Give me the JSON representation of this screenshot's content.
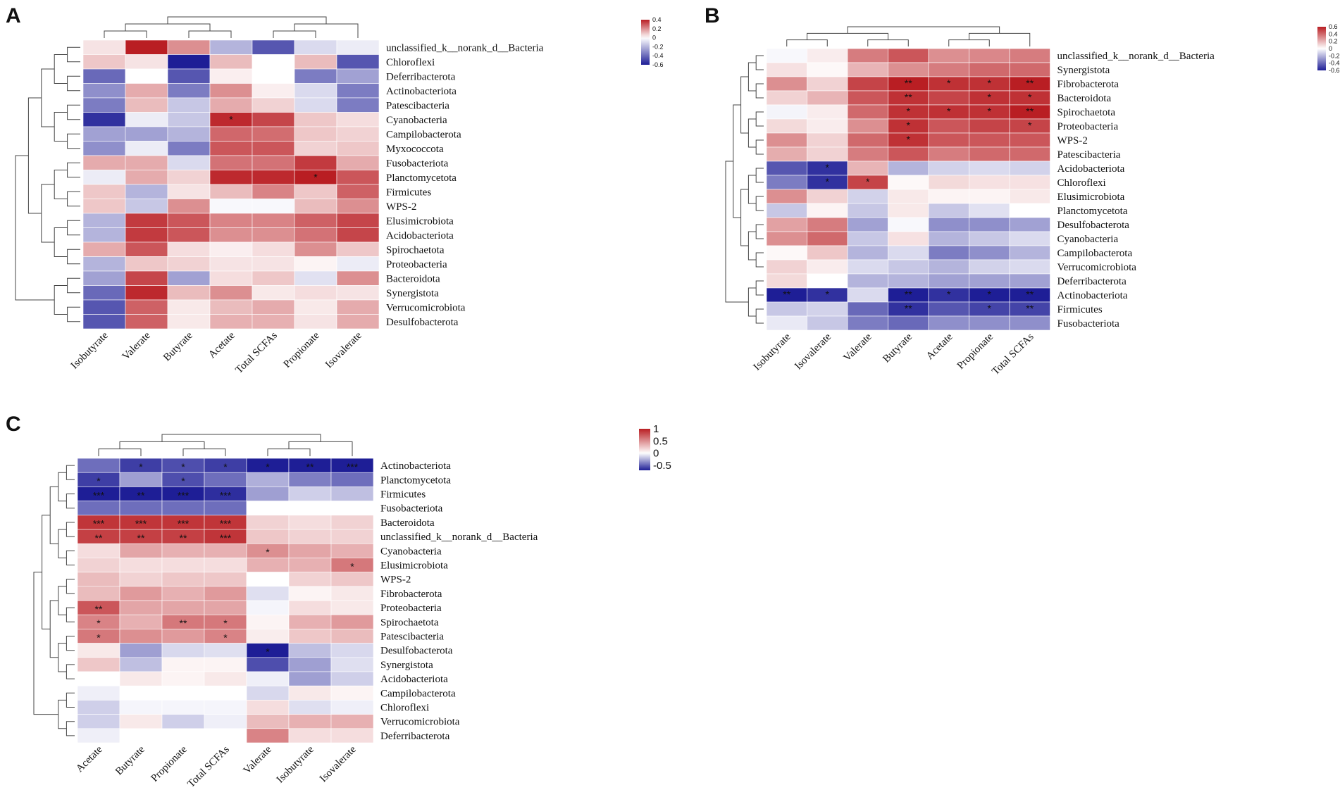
{
  "chart_data": [
    {
      "panel": "A",
      "type": "heatmap",
      "color_scale": {
        "min": -0.6,
        "max": 0.4,
        "low": "#1e1e96",
        "mid": "#ffffff",
        "high": "#b91e23"
      },
      "legend_ticks": [
        "0.4",
        "0.2",
        "0",
        "-0.2",
        "-0.4",
        "-0.6"
      ],
      "columns": [
        "Isobutyrate",
        "Valerate",
        "Butyrate",
        "Acetate",
        "Total SCFAs",
        "Propionate",
        "Isovalerate"
      ],
      "rows": [
        "unclassified_k__norank_d__Bacteria",
        "Chloroflexi",
        "Deferribacterota",
        "Actinobacteriota",
        "Patescibacteria",
        "Cyanobacteria",
        "Campilobacterota",
        "Myxococcota",
        "Fusobacteriota",
        "Planctomycetota",
        "Firmicutes",
        "WPS-2",
        "Elusimicrobiota",
        "Acidobacteriota",
        "Spirochaetota",
        "Proteobacteria",
        "Bacteroidota",
        "Synergistota",
        "Verrucomicrobiota",
        "Desulfobacterota"
      ],
      "values": [
        [
          0.05,
          0.4,
          0.2,
          -0.2,
          -0.45,
          -0.1,
          -0.05
        ],
        [
          0.1,
          0.05,
          -0.6,
          0.12,
          0.0,
          0.12,
          -0.45
        ],
        [
          -0.4,
          0.0,
          -0.45,
          0.03,
          0.0,
          -0.35,
          -0.25
        ],
        [
          -0.3,
          0.15,
          -0.35,
          0.2,
          0.03,
          -0.1,
          -0.35
        ],
        [
          -0.35,
          0.12,
          -0.15,
          0.15,
          0.08,
          -0.1,
          -0.35
        ],
        [
          -0.55,
          -0.05,
          -0.15,
          0.38,
          0.33,
          0.1,
          0.06
        ],
        [
          -0.25,
          -0.25,
          -0.2,
          0.27,
          0.26,
          0.1,
          0.08
        ],
        [
          -0.3,
          -0.05,
          -0.35,
          0.3,
          0.3,
          0.08,
          0.1
        ],
        [
          0.15,
          0.15,
          -0.1,
          0.25,
          0.25,
          0.35,
          0.15
        ],
        [
          -0.05,
          0.15,
          0.08,
          0.38,
          0.38,
          0.4,
          0.3
        ],
        [
          0.1,
          -0.2,
          0.05,
          0.12,
          0.22,
          0.1,
          0.28
        ],
        [
          0.1,
          -0.15,
          0.2,
          -0.02,
          -0.02,
          0.12,
          0.2
        ],
        [
          -0.2,
          0.35,
          0.3,
          0.22,
          0.22,
          0.28,
          0.33
        ],
        [
          -0.2,
          0.35,
          0.3,
          0.2,
          0.2,
          0.25,
          0.33
        ],
        [
          0.15,
          0.3,
          0.06,
          0.03,
          0.06,
          0.2,
          0.1
        ],
        [
          -0.2,
          0.1,
          0.08,
          0.05,
          0.05,
          0.02,
          -0.05
        ],
        [
          -0.25,
          0.33,
          -0.25,
          0.06,
          0.1,
          -0.08,
          0.2
        ],
        [
          -0.4,
          0.38,
          0.12,
          0.2,
          0.04,
          0.06,
          0.05
        ],
        [
          -0.45,
          0.28,
          0.04,
          0.12,
          0.15,
          0.04,
          0.15
        ],
        [
          -0.45,
          0.28,
          0.04,
          0.14,
          0.14,
          0.05,
          0.15
        ]
      ],
      "annotations": [
        {
          "row": 5,
          "col": 3,
          "text": "*"
        },
        {
          "row": 9,
          "col": 5,
          "text": "*"
        }
      ]
    },
    {
      "panel": "B",
      "type": "heatmap",
      "color_scale": {
        "min": -0.6,
        "max": 0.6,
        "low": "#1e1e96",
        "mid": "#ffffff",
        "high": "#b91e23"
      },
      "legend_ticks": [
        "0.6",
        "0.4",
        "0.2",
        "0",
        "-0.2",
        "-0.4",
        "-0.6"
      ],
      "columns": [
        "Isobutyrate",
        "Isovalerate",
        "Valerate",
        "Butyrate",
        "Acetate",
        "Propionate",
        "Total SCFAs"
      ],
      "rows": [
        "unclassified_k__norank_d__Bacteria",
        "Synergistota",
        "Fibrobacterota",
        "Bacteroidota",
        "Spirochaetota",
        "Proteobacteria",
        "WPS-2",
        "Patescibacteria",
        "Acidobacteriota",
        "Chloroflexi",
        "Elusimicrobiota",
        "Planctomycetota",
        "Desulfobacterota",
        "Cyanobacteria",
        "Campilobacterota",
        "Verrucomicrobiota",
        "Deferribacterota",
        "Actinobacteriota",
        "Firmicutes",
        "Fusobacteriota"
      ],
      "values": [
        [
          -0.02,
          0.05,
          0.35,
          0.45,
          0.3,
          0.32,
          0.35
        ],
        [
          0.08,
          0.02,
          0.2,
          0.3,
          0.35,
          0.4,
          0.4
        ],
        [
          0.3,
          0.12,
          0.5,
          0.6,
          0.55,
          0.55,
          0.6
        ],
        [
          0.12,
          0.2,
          0.45,
          0.55,
          0.5,
          0.55,
          0.55
        ],
        [
          -0.03,
          0.05,
          0.4,
          0.55,
          0.55,
          0.55,
          0.6
        ],
        [
          0.1,
          0.05,
          0.3,
          0.55,
          0.45,
          0.5,
          0.5
        ],
        [
          0.3,
          0.12,
          0.4,
          0.55,
          0.45,
          0.45,
          0.45
        ],
        [
          0.22,
          0.12,
          0.35,
          0.45,
          0.35,
          0.4,
          0.4
        ],
        [
          -0.45,
          -0.55,
          0.2,
          -0.2,
          -0.12,
          -0.1,
          -0.12
        ],
        [
          -0.35,
          -0.55,
          0.5,
          0.02,
          0.1,
          0.08,
          0.08
        ],
        [
          0.3,
          0.12,
          -0.12,
          0.06,
          0.03,
          0.03,
          0.06
        ],
        [
          -0.15,
          0.03,
          -0.15,
          0.06,
          -0.15,
          -0.08,
          0.0
        ],
        [
          0.25,
          0.35,
          -0.25,
          -0.02,
          -0.3,
          -0.3,
          -0.25
        ],
        [
          0.3,
          0.4,
          -0.15,
          0.08,
          -0.2,
          -0.15,
          -0.1
        ],
        [
          0.02,
          0.15,
          -0.2,
          -0.1,
          -0.35,
          -0.3,
          -0.2
        ],
        [
          0.12,
          0.05,
          -0.1,
          -0.15,
          -0.2,
          -0.12,
          -0.1
        ],
        [
          0.1,
          0.0,
          -0.2,
          -0.2,
          -0.25,
          -0.25,
          -0.25
        ],
        [
          -0.6,
          -0.55,
          -0.1,
          -0.6,
          -0.55,
          -0.6,
          -0.6
        ],
        [
          -0.15,
          -0.12,
          -0.4,
          -0.55,
          -0.45,
          -0.5,
          -0.5
        ],
        [
          -0.06,
          -0.15,
          -0.35,
          -0.4,
          -0.3,
          -0.3,
          -0.3
        ]
      ],
      "annotations": [
        {
          "row": 2,
          "col": 3,
          "text": "**"
        },
        {
          "row": 2,
          "col": 4,
          "text": "*"
        },
        {
          "row": 2,
          "col": 5,
          "text": "*"
        },
        {
          "row": 2,
          "col": 6,
          "text": "**"
        },
        {
          "row": 3,
          "col": 3,
          "text": "**"
        },
        {
          "row": 3,
          "col": 5,
          "text": "*"
        },
        {
          "row": 3,
          "col": 6,
          "text": "*"
        },
        {
          "row": 4,
          "col": 3,
          "text": "*"
        },
        {
          "row": 4,
          "col": 4,
          "text": "*"
        },
        {
          "row": 4,
          "col": 5,
          "text": "*"
        },
        {
          "row": 4,
          "col": 6,
          "text": "**"
        },
        {
          "row": 5,
          "col": 3,
          "text": "*"
        },
        {
          "row": 5,
          "col": 6,
          "text": "*"
        },
        {
          "row": 6,
          "col": 3,
          "text": "*"
        },
        {
          "row": 8,
          "col": 1,
          "text": "*"
        },
        {
          "row": 9,
          "col": 1,
          "text": "*"
        },
        {
          "row": 9,
          "col": 2,
          "text": "*"
        },
        {
          "row": 17,
          "col": 0,
          "text": "**"
        },
        {
          "row": 17,
          "col": 1,
          "text": "*"
        },
        {
          "row": 17,
          "col": 3,
          "text": "**"
        },
        {
          "row": 17,
          "col": 4,
          "text": "*"
        },
        {
          "row": 17,
          "col": 5,
          "text": "*"
        },
        {
          "row": 17,
          "col": 6,
          "text": "**"
        },
        {
          "row": 18,
          "col": 3,
          "text": "**"
        },
        {
          "row": 18,
          "col": 5,
          "text": "*"
        },
        {
          "row": 18,
          "col": 6,
          "text": "**"
        }
      ]
    },
    {
      "panel": "C",
      "type": "heatmap",
      "color_scale": {
        "min": -0.7,
        "max": 1,
        "low": "#1e1e96",
        "mid": "#ffffff",
        "high": "#b91e23"
      },
      "legend_ticks": [
        "1",
        "0.5",
        "0",
        "-0.5"
      ],
      "columns": [
        "Acetate",
        "Butyrate",
        "Propionate",
        "Total SCFAs",
        "Valerate",
        "Isobutyrate",
        "Isovalerate"
      ],
      "rows": [
        "Actinobacteriota",
        "Planctomycetota",
        "Firmicutes",
        "Fusobacteriota",
        "Bacteroidota",
        "unclassified_k__norank_d__Bacteria",
        "Cyanobacteria",
        "Elusimicrobiota",
        "WPS-2",
        "Fibrobacterota",
        "Proteobacteria",
        "Spirochaetota",
        "Patescibacteria",
        "Desulfobacterota",
        "Synergistota",
        "Acidobacteriota",
        "Campilobacterota",
        "Chloroflexi",
        "Verrucomicrobiota",
        "Deferribacterota"
      ],
      "values": [
        [
          -0.45,
          -0.6,
          -0.55,
          -0.6,
          -0.7,
          -0.7,
          -0.7
        ],
        [
          -0.6,
          -0.3,
          -0.55,
          -0.45,
          -0.25,
          -0.4,
          -0.45
        ],
        [
          -0.7,
          -0.7,
          -0.7,
          -0.65,
          -0.3,
          -0.15,
          -0.2
        ],
        [
          -0.45,
          -0.45,
          -0.45,
          -0.45,
          0.0,
          0.0,
          0.0
        ],
        [
          0.9,
          0.9,
          0.9,
          0.9,
          0.2,
          0.15,
          0.2
        ],
        [
          0.85,
          0.85,
          0.85,
          0.9,
          0.25,
          0.2,
          0.2
        ],
        [
          0.15,
          0.4,
          0.35,
          0.35,
          0.5,
          0.4,
          0.35
        ],
        [
          0.2,
          0.15,
          0.15,
          0.15,
          0.35,
          0.35,
          0.6
        ],
        [
          0.3,
          0.2,
          0.25,
          0.25,
          0.0,
          0.2,
          0.25
        ],
        [
          0.3,
          0.45,
          0.35,
          0.45,
          -0.1,
          0.05,
          0.1
        ],
        [
          0.75,
          0.4,
          0.4,
          0.4,
          -0.03,
          0.15,
          0.1
        ],
        [
          0.55,
          0.35,
          0.6,
          0.6,
          0.05,
          0.35,
          0.45
        ],
        [
          0.6,
          0.5,
          0.45,
          0.55,
          0.08,
          0.25,
          0.3
        ],
        [
          0.1,
          -0.3,
          -0.12,
          -0.1,
          -0.7,
          -0.2,
          -0.12
        ],
        [
          0.25,
          -0.2,
          0.05,
          0.05,
          -0.55,
          -0.3,
          -0.1
        ],
        [
          0.0,
          0.1,
          0.05,
          0.1,
          -0.05,
          -0.3,
          -0.15
        ],
        [
          -0.05,
          0.0,
          0.0,
          0.0,
          -0.12,
          0.1,
          0.05
        ],
        [
          -0.15,
          -0.03,
          -0.03,
          -0.03,
          0.15,
          -0.1,
          -0.05
        ],
        [
          -0.15,
          0.1,
          -0.15,
          -0.05,
          0.3,
          0.35,
          0.35
        ],
        [
          -0.05,
          0.0,
          0.0,
          0.0,
          0.55,
          0.15,
          0.15
        ]
      ],
      "annotations": [
        {
          "row": 0,
          "col": 1,
          "text": "*"
        },
        {
          "row": 0,
          "col": 2,
          "text": "*"
        },
        {
          "row": 0,
          "col": 3,
          "text": "*"
        },
        {
          "row": 0,
          "col": 4,
          "text": "*"
        },
        {
          "row": 0,
          "col": 5,
          "text": "**"
        },
        {
          "row": 0,
          "col": 6,
          "text": "***"
        },
        {
          "row": 1,
          "col": 0,
          "text": "*"
        },
        {
          "row": 1,
          "col": 2,
          "text": "*"
        },
        {
          "row": 2,
          "col": 0,
          "text": "***"
        },
        {
          "row": 2,
          "col": 1,
          "text": "**"
        },
        {
          "row": 2,
          "col": 2,
          "text": "***"
        },
        {
          "row": 2,
          "col": 3,
          "text": "***"
        },
        {
          "row": 4,
          "col": 0,
          "text": "***"
        },
        {
          "row": 4,
          "col": 1,
          "text": "***"
        },
        {
          "row": 4,
          "col": 2,
          "text": "***"
        },
        {
          "row": 4,
          "col": 3,
          "text": "***"
        },
        {
          "row": 5,
          "col": 0,
          "text": "**"
        },
        {
          "row": 5,
          "col": 1,
          "text": "**"
        },
        {
          "row": 5,
          "col": 2,
          "text": "**"
        },
        {
          "row": 5,
          "col": 3,
          "text": "***"
        },
        {
          "row": 6,
          "col": 4,
          "text": "*"
        },
        {
          "row": 7,
          "col": 6,
          "text": "*"
        },
        {
          "row": 10,
          "col": 0,
          "text": "**"
        },
        {
          "row": 11,
          "col": 0,
          "text": "*"
        },
        {
          "row": 11,
          "col": 2,
          "text": "**"
        },
        {
          "row": 11,
          "col": 3,
          "text": "*"
        },
        {
          "row": 12,
          "col": 0,
          "text": "*"
        },
        {
          "row": 12,
          "col": 3,
          "text": "*"
        },
        {
          "row": 13,
          "col": 4,
          "text": "*"
        }
      ]
    }
  ]
}
